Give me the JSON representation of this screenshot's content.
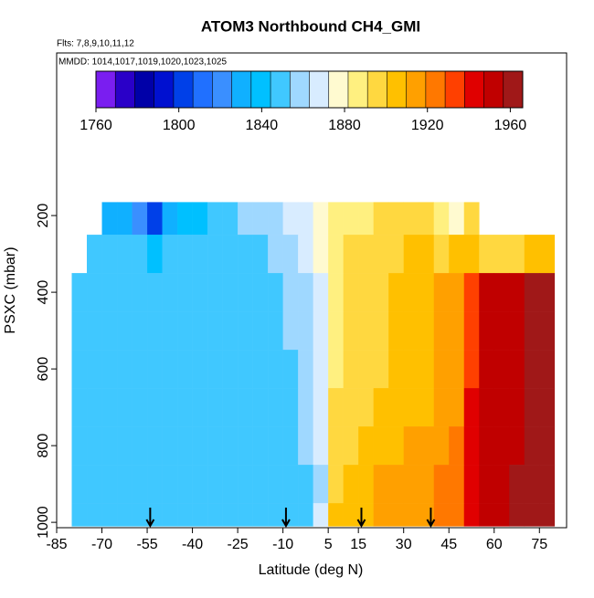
{
  "chart_data": {
    "type": "heatmap",
    "title": "ATOM3 Northbound CH4_GMI",
    "subtitle": "Flts: 7,8,9,10,11,12",
    "annotation": "MMDD: 1014,1017,1019,1020,1023,1025",
    "xlabel": "Latitude (deg N)",
    "ylabel": "PSXC (mbar)",
    "xlim": [
      -85,
      84
    ],
    "ylim": [
      1014,
      -224
    ],
    "xticks": [
      -85,
      -70,
      -55,
      -40,
      -25,
      -10,
      5,
      15,
      30,
      45,
      60,
      75
    ],
    "yticks": [
      200,
      400,
      600,
      800,
      1000
    ],
    "x_edges": [
      -80,
      -75,
      -70,
      -65,
      -60,
      -55,
      -50,
      -45,
      -40,
      -35,
      -30,
      -25,
      -20,
      -15,
      -10,
      -5,
      0,
      5,
      10,
      15,
      20,
      25,
      30,
      35,
      40,
      45,
      50,
      55,
      60,
      65,
      70,
      75,
      80
    ],
    "y_edges": [
      165,
      250,
      350,
      450,
      550,
      650,
      750,
      850,
      950,
      1010
    ],
    "values": [
      [
        null,
        null,
        1828,
        1828,
        1822,
        1800,
        1830,
        1835,
        1840,
        1845,
        1850,
        1855,
        1858,
        1862,
        1866,
        1870,
        1878,
        1885,
        1890,
        1890,
        1893,
        1895,
        1898,
        1900,
        1885,
        1875,
        1892,
        null,
        null,
        null,
        null,
        null
      ],
      [
        null,
        1845,
        1845,
        1845,
        1845,
        1843,
        1845,
        1848,
        1850,
        1850,
        1850,
        1852,
        1852,
        1855,
        1858,
        1865,
        1875,
        1888,
        1893,
        1895,
        1898,
        1900,
        1902,
        1905,
        1900,
        1902,
        1905,
        1898,
        1896,
        1895,
        1905,
        1905
      ],
      [
        1845,
        1845,
        1845,
        1845,
        1845,
        1845,
        1845,
        1846,
        1847,
        1847,
        1848,
        1850,
        1850,
        1852,
        1855,
        1862,
        1872,
        1890,
        1895,
        1897,
        1900,
        1902,
        1905,
        1908,
        1910,
        1912,
        1935,
        1950,
        1952,
        1955,
        1958,
        1960
      ],
      [
        1845,
        1845,
        1845,
        1845,
        1845,
        1845,
        1845,
        1846,
        1847,
        1847,
        1848,
        1849,
        1850,
        1851,
        1854,
        1860,
        1868,
        1890,
        1895,
        1897,
        1900,
        1902,
        1905,
        1908,
        1910,
        1914,
        1936,
        1950,
        1952,
        1955,
        1958,
        1960
      ],
      [
        1845,
        1845,
        1845,
        1845,
        1845,
        1845,
        1845,
        1846,
        1846,
        1847,
        1847,
        1848,
        1849,
        1850,
        1853,
        1858,
        1868,
        1891,
        1896,
        1898,
        1900,
        1903,
        1905,
        1908,
        1911,
        1916,
        1937,
        1951,
        1953,
        1955,
        1958,
        1960
      ],
      [
        1845,
        1845,
        1845,
        1845,
        1845,
        1845,
        1845,
        1845,
        1846,
        1846,
        1847,
        1847,
        1848,
        1849,
        1852,
        1858,
        1868,
        1892,
        1897,
        1899,
        1901,
        1904,
        1906,
        1909,
        1912,
        1918,
        1938,
        1951,
        1953,
        1956,
        1958,
        1960
      ],
      [
        1845,
        1845,
        1845,
        1845,
        1845,
        1845,
        1845,
        1845,
        1846,
        1846,
        1846,
        1847,
        1847,
        1848,
        1850,
        1855,
        1868,
        1895,
        1900,
        1902,
        1905,
        1908,
        1910,
        1912,
        1918,
        1922,
        1938,
        1952,
        1954,
        1956,
        1958,
        1961
      ],
      [
        1845,
        1845,
        1845,
        1845,
        1845,
        1845,
        1845,
        1845,
        1845,
        1846,
        1846,
        1846,
        1847,
        1847,
        1848,
        1850,
        1862,
        1900,
        1905,
        1908,
        1910,
        1912,
        1915,
        1918,
        1925,
        1928,
        1940,
        1952,
        1955,
        1958,
        1960,
        1962
      ],
      [
        1845,
        1845,
        1845,
        1845,
        1845,
        1845,
        1845,
        1845,
        1845,
        1846,
        1846,
        1846,
        1847,
        1847,
        1848,
        1850,
        1870,
        1905,
        1905,
        1908,
        1910,
        1912,
        1915,
        1918,
        1925,
        1928,
        1940,
        1952,
        1955,
        1958,
        1960,
        1962
      ]
    ],
    "arrows": [
      -54,
      -9,
      16,
      39
    ],
    "colorbar": {
      "clim": [
        1760,
        1966
      ],
      "ticks": [
        1760,
        1800,
        1840,
        1880,
        1920,
        1960
      ],
      "colors": [
        "#7a1ef0",
        "#2a00c8",
        "#0000a8",
        "#0010d0",
        "#0040e8",
        "#2070ff",
        "#3a8fff",
        "#10b0ff",
        "#00c0ff",
        "#40c8ff",
        "#9fd8ff",
        "#d8ecff",
        "#fffad0",
        "#fff080",
        "#ffd840",
        "#ffc000",
        "#ffa000",
        "#ff7800",
        "#ff4000",
        "#e00000",
        "#c00000",
        "#a01818"
      ]
    }
  }
}
